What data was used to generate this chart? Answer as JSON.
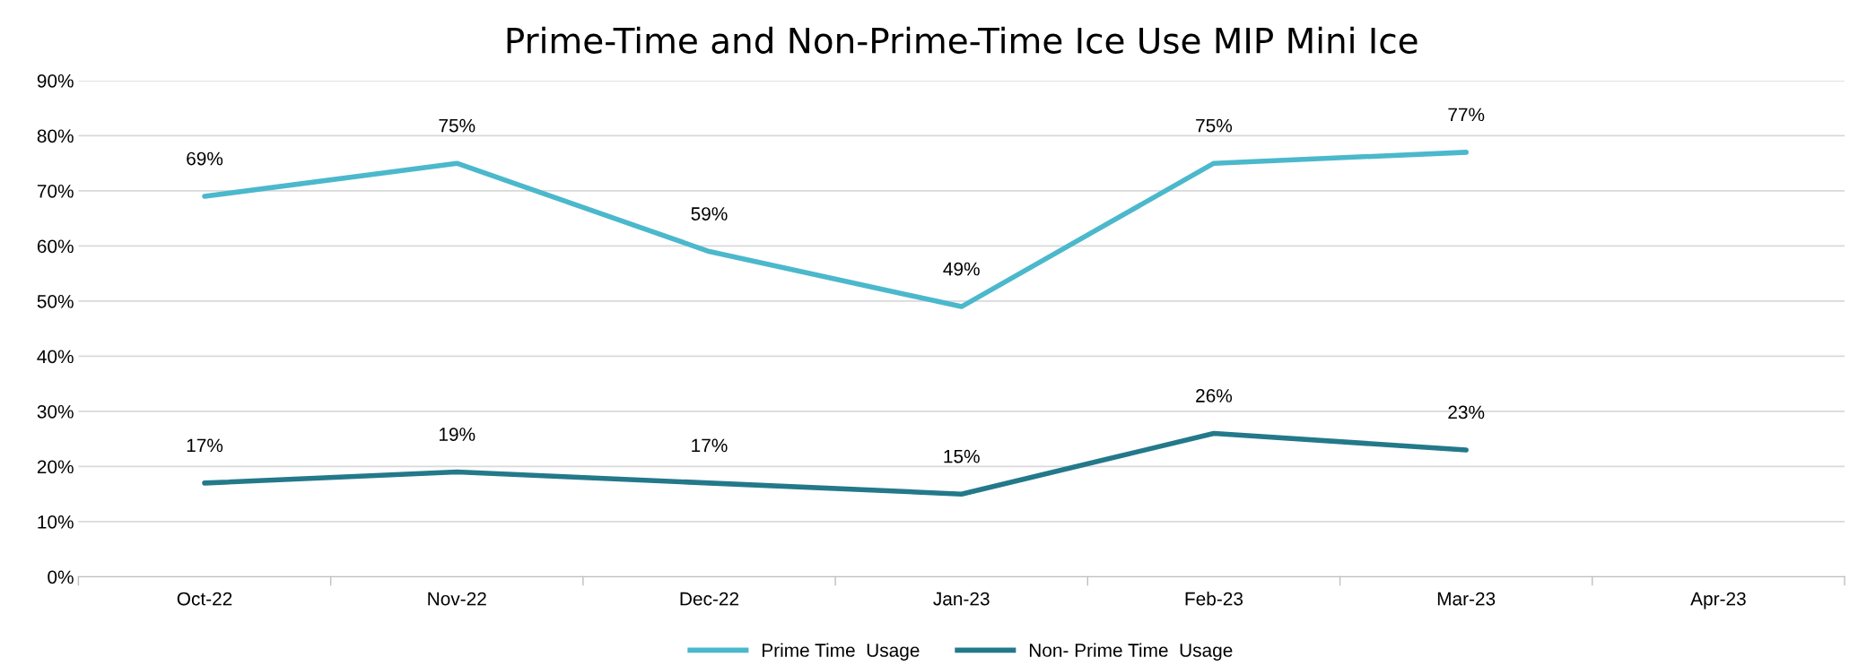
{
  "chart_data": {
    "type": "line",
    "title": "Prime-Time and Non-Prime-Time Ice Use MIP Mini Ice",
    "categories": [
      "Oct-22",
      "Nov-22",
      "Dec-22",
      "Jan-23",
      "Feb-23",
      "Mar-23",
      "Apr-23"
    ],
    "series": [
      {
        "name": "Prime Time  Usage",
        "color": "#4bb8cc",
        "values": [
          69,
          75,
          59,
          49,
          75,
          77,
          null
        ],
        "value_labels": [
          "69%",
          "75%",
          "59%",
          "49%",
          "75%",
          "77%",
          null
        ]
      },
      {
        "name": "Non- Prime Time  Usage",
        "color": "#23798a",
        "values": [
          17,
          19,
          17,
          15,
          26,
          23,
          null
        ],
        "value_labels": [
          "17%",
          "19%",
          "17%",
          "15%",
          "26%",
          "23%",
          null
        ]
      }
    ],
    "ylim": [
      0,
      90
    ],
    "yticks": [
      {
        "value": 0,
        "label": "0%"
      },
      {
        "value": 10,
        "label": "10%"
      },
      {
        "value": 20,
        "label": "20%"
      },
      {
        "value": 30,
        "label": "30%"
      },
      {
        "value": 40,
        "label": "40%"
      },
      {
        "value": 50,
        "label": "50%"
      },
      {
        "value": 60,
        "label": "60%"
      },
      {
        "value": 70,
        "label": "70%"
      },
      {
        "value": 80,
        "label": "80%"
      },
      {
        "value": 90,
        "label": "90%"
      }
    ],
    "grid": "y",
    "legend": "bottom",
    "marker": "none",
    "line_style": "solid"
  }
}
